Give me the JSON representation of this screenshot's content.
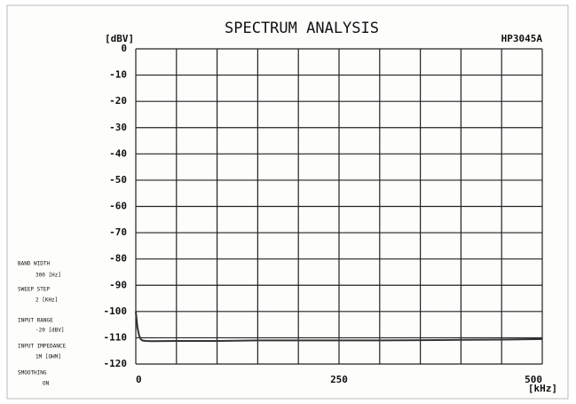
{
  "chart_data": {
    "type": "line",
    "title": "SPECTRUM ANALYSIS",
    "y_unit": "[dBV]",
    "model": "HP3045A",
    "x_unit": "[kHz]",
    "xlim": [
      0,
      500
    ],
    "xticks": [
      0,
      250,
      500
    ],
    "xgrid": [
      0,
      50,
      100,
      150,
      200,
      250,
      300,
      350,
      400,
      450,
      500
    ],
    "ylim": [
      -120,
      0
    ],
    "yticks": [
      0,
      -10,
      -20,
      -30,
      -40,
      -50,
      -60,
      -70,
      -80,
      -90,
      -100,
      -110,
      -120
    ],
    "grid": true,
    "series": [
      {
        "name": "spectrum",
        "color": "#333333",
        "x": [
          0,
          2,
          4,
          6,
          8,
          12,
          20,
          50,
          100,
          150,
          200,
          250,
          300,
          350,
          400,
          450,
          500
        ],
        "values": [
          -100,
          -106,
          -109,
          -110.5,
          -111,
          -111.2,
          -111.3,
          -111.2,
          -111.2,
          -111,
          -111,
          -111,
          -111,
          -110.9,
          -110.8,
          -110.7,
          -110.5
        ]
      }
    ],
    "settings_panel": [
      {
        "label": "BAND WIDTH",
        "value": "300 [Hz]"
      },
      {
        "label": "SWEEP STEP",
        "value": "2 [KHz]"
      },
      {
        "label": "INPUT RANGE",
        "value": "-20 [dBV]"
      },
      {
        "label": "INPUT IMPEDANCE",
        "value": "1M [OHM]"
      },
      {
        "label": "SMOOTHING",
        "value": "ON"
      }
    ]
  }
}
